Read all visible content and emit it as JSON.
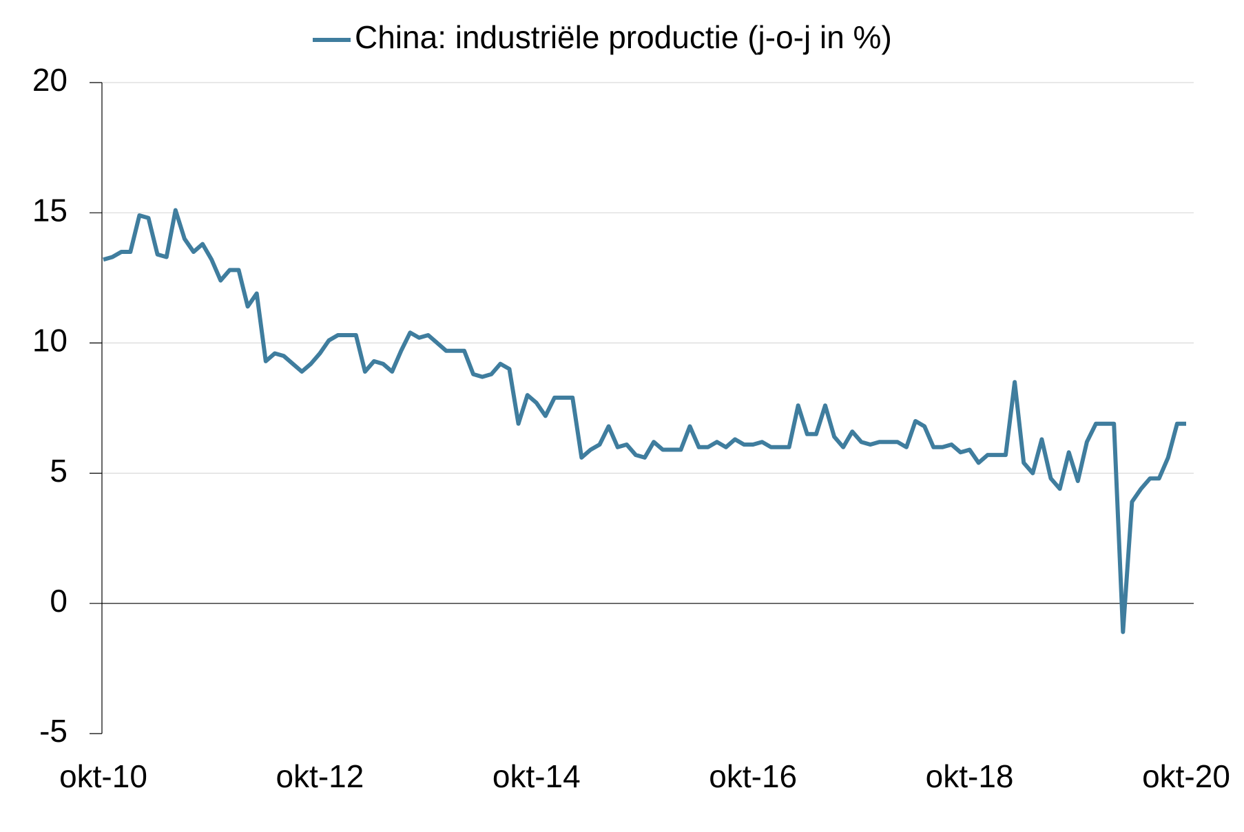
{
  "chart_data": {
    "type": "line",
    "categories": [
      "okt-10",
      null,
      null,
      null,
      null,
      null,
      null,
      null,
      null,
      null,
      null,
      null,
      null,
      null,
      null,
      null,
      null,
      null,
      null,
      null,
      null,
      null,
      null,
      null,
      "okt-12",
      null,
      null,
      null,
      null,
      null,
      null,
      null,
      null,
      null,
      null,
      null,
      null,
      null,
      null,
      null,
      null,
      null,
      null,
      null,
      null,
      null,
      null,
      null,
      "okt-14",
      null,
      null,
      null,
      null,
      null,
      null,
      null,
      null,
      null,
      null,
      null,
      null,
      null,
      null,
      null,
      null,
      null,
      null,
      null,
      null,
      null,
      null,
      null,
      "okt-16",
      null,
      null,
      null,
      null,
      null,
      null,
      null,
      null,
      null,
      null,
      null,
      null,
      null,
      null,
      null,
      null,
      null,
      null,
      null,
      null,
      null,
      null,
      null,
      "okt-18",
      null,
      null,
      null,
      null,
      null,
      null,
      null,
      null,
      null,
      null,
      null,
      null,
      null,
      null,
      null,
      null,
      null,
      null,
      null,
      null,
      null,
      null,
      null,
      "okt-20"
    ],
    "series": [
      {
        "name": "China: industriële productie (j-o-j in %)",
        "color": "#3f7d9e",
        "values": [
          13.2,
          13.3,
          13.5,
          13.5,
          14.9,
          14.8,
          13.4,
          13.3,
          15.1,
          14.0,
          13.5,
          13.8,
          13.2,
          12.4,
          12.8,
          12.8,
          11.4,
          11.9,
          9.3,
          9.6,
          9.5,
          9.2,
          8.9,
          9.2,
          9.6,
          10.1,
          10.3,
          10.3,
          10.3,
          8.9,
          9.3,
          9.2,
          8.9,
          9.7,
          10.4,
          10.2,
          10.3,
          10.0,
          9.7,
          9.7,
          9.7,
          8.8,
          8.7,
          8.8,
          9.2,
          9.0,
          6.9,
          8.0,
          7.7,
          7.2,
          7.9,
          7.9,
          7.9,
          5.6,
          5.9,
          6.1,
          6.8,
          6.0,
          6.1,
          5.7,
          5.6,
          6.2,
          5.9,
          5.9,
          5.9,
          6.8,
          6.0,
          6.0,
          6.2,
          6.0,
          6.3,
          6.1,
          6.1,
          6.2,
          6.0,
          6.0,
          6.0,
          7.6,
          6.5,
          6.5,
          7.6,
          6.4,
          6.0,
          6.6,
          6.2,
          6.1,
          6.2,
          6.2,
          6.2,
          6.0,
          7.0,
          6.8,
          6.0,
          6.0,
          6.1,
          5.8,
          5.9,
          5.4,
          5.7,
          5.7,
          5.7,
          8.5,
          5.4,
          5.0,
          6.3,
          4.8,
          4.4,
          5.8,
          4.7,
          6.2,
          6.9,
          6.9,
          6.9,
          -1.1,
          3.9,
          4.4,
          4.8,
          4.8,
          5.6,
          6.9,
          6.9
        ]
      }
    ],
    "ylim": [
      -5,
      20
    ],
    "yticks": [
      -5,
      0,
      5,
      10,
      15,
      20
    ],
    "grid": true,
    "legend": "top"
  }
}
